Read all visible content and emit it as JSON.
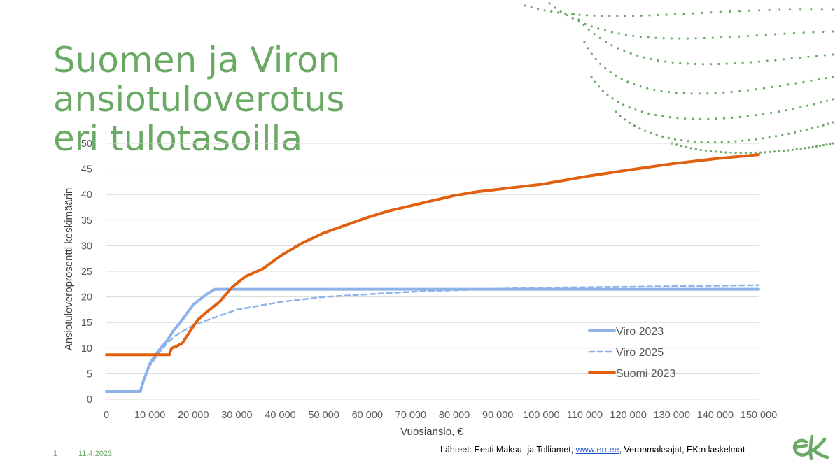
{
  "title": {
    "line1": "Suomen ja Viron ansiotuloverotus",
    "line2": "eri tulotasoilla"
  },
  "footer": {
    "slide_number": "1",
    "date": "11.4.2023",
    "sources_prefix": "Lähteet: Eesti Maksu- ja Tolliamet, ",
    "sources_link": "www.err.ee",
    "sources_suffix": ", Veronmaksajat, EK:n laskelmat"
  },
  "logo": {
    "text": "ek",
    "color": "#6aaa64"
  },
  "colors": {
    "accent": "#6aaa64",
    "viro": "#8db3e8",
    "suomi": "#e0600f",
    "grid": "#d9d9d9"
  },
  "chart_data": {
    "type": "line",
    "xlabel": "Vuosiansio, €",
    "ylabel": "Ansiotuloveroprosentti keskimäärin",
    "xlim": [
      0,
      150000
    ],
    "ylim": [
      0,
      50
    ],
    "x_ticks": [
      0,
      10000,
      20000,
      30000,
      40000,
      50000,
      60000,
      70000,
      80000,
      90000,
      100000,
      110000,
      120000,
      130000,
      140000,
      150000
    ],
    "x_tick_labels": [
      "0",
      "10 000",
      "20 000",
      "30 000",
      "40 000",
      "50 000",
      "60 000",
      "70 000",
      "80 000",
      "90 000",
      "100 000",
      "110 000",
      "120 000",
      "130 000",
      "140 000",
      "150 000"
    ],
    "y_ticks": [
      0,
      5,
      10,
      15,
      20,
      25,
      30,
      35,
      40,
      45,
      50
    ],
    "grid": true,
    "legend_position": "right",
    "series": [
      {
        "name": "Viro 2023",
        "style": "solid",
        "color": "#8db3e8",
        "x": [
          0,
          7800,
          8500,
          10000,
          12000,
          14000,
          15500,
          17000,
          20000,
          23000,
          25000,
          150000
        ],
        "y": [
          1.5,
          1.5,
          3.5,
          7.0,
          9.5,
          11.5,
          13.5,
          15.0,
          18.5,
          20.5,
          21.5,
          21.5
        ]
      },
      {
        "name": "Viro 2025",
        "style": "dashed",
        "color": "#8db3e8",
        "x": [
          0,
          7800,
          9000,
          10000,
          12000,
          14000,
          16000,
          18000,
          20000,
          25000,
          30000,
          40000,
          50000,
          60000,
          70000,
          80000,
          90000,
          100000,
          120000,
          150000
        ],
        "y": [
          1.5,
          1.5,
          4.5,
          6.5,
          9.0,
          11.0,
          12.5,
          13.5,
          14.5,
          16.0,
          17.5,
          19.0,
          20.0,
          20.5,
          21.0,
          21.3,
          21.6,
          21.8,
          22.0,
          22.3
        ]
      },
      {
        "name": "Suomi 2023",
        "style": "solid",
        "color": "#e0600f",
        "x": [
          0,
          14500,
          15000,
          16000,
          17500,
          19000,
          21000,
          23000,
          26000,
          29000,
          32000,
          36000,
          40000,
          45000,
          50000,
          55000,
          60000,
          65000,
          70000,
          75000,
          80000,
          85000,
          90000,
          95000,
          100000,
          110000,
          120000,
          130000,
          140000,
          150000
        ],
        "y": [
          8.7,
          8.7,
          10.0,
          10.3,
          11.0,
          13.0,
          15.5,
          17.0,
          19.0,
          22.0,
          24.0,
          25.5,
          28.0,
          30.5,
          32.5,
          34.0,
          35.5,
          36.8,
          37.8,
          38.8,
          39.8,
          40.5,
          41.0,
          41.5,
          42.0,
          43.5,
          44.8,
          46.0,
          47.0,
          47.8
        ]
      }
    ]
  }
}
